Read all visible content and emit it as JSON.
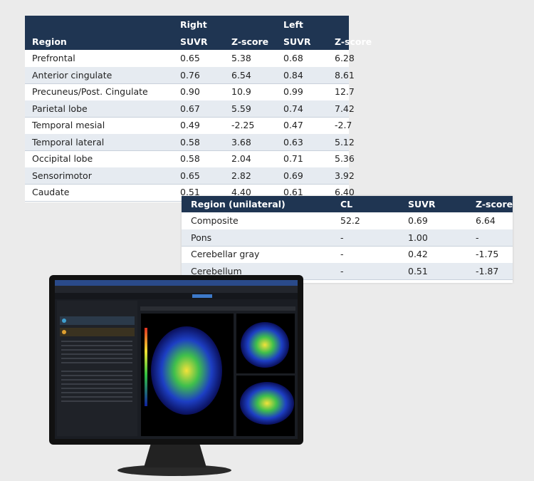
{
  "table_bilateral": {
    "group_headers": [
      "Right",
      "Left"
    ],
    "columns": [
      "Region",
      "SUVR",
      "Z-score",
      "SUVR",
      "Z-score"
    ],
    "rows": [
      [
        "Prefrontal",
        "0.65",
        "5.38",
        "0.68",
        "6.28"
      ],
      [
        "Anterior cingulate",
        "0.76",
        "6.54",
        "0.84",
        "8.61"
      ],
      [
        "Precuneus/Post. Cingulate",
        "0.90",
        "10.9",
        "0.99",
        "12.7"
      ],
      [
        "Parietal lobe",
        "0.67",
        "5.59",
        "0.74",
        "7.42"
      ],
      [
        "Temporal mesial",
        "0.49",
        "-2.25",
        "0.47",
        "-2.7"
      ],
      [
        "Temporal lateral",
        "0.58",
        "3.68",
        "0.63",
        "5.12"
      ],
      [
        "Occipital lobe",
        "0.58",
        "2.04",
        "0.71",
        "5.36"
      ],
      [
        "Sensorimotor",
        "0.65",
        "2.82",
        "0.69",
        "3.92"
      ],
      [
        "Caudate",
        "0.51",
        "4.40",
        "0.61",
        "6.40"
      ]
    ]
  },
  "table_unilateral": {
    "columns": [
      "Region (unilateral)",
      "CL",
      "SUVR",
      "Z-score"
    ],
    "rows": [
      [
        "Composite",
        "52.2",
        "0.69",
        "6.64"
      ],
      [
        "Pons",
        "-",
        "1.00",
        "-"
      ],
      [
        "Cerebellar gray",
        "-",
        "0.42",
        "-1.75"
      ],
      [
        "Cerebellum",
        "-",
        "0.51",
        "-1.87"
      ]
    ]
  }
}
